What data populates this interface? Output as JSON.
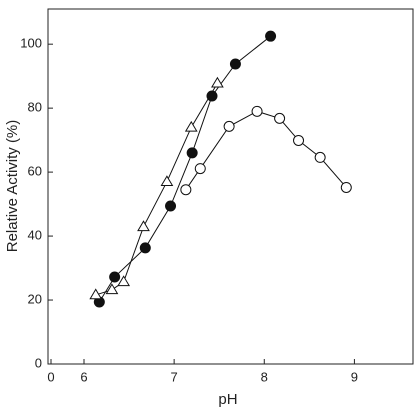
{
  "chart_data": {
    "type": "line",
    "x_label": "pH",
    "y_label": "Relative Activity (%)",
    "x_axis_break": true,
    "xlim": [
      0,
      9.65
    ],
    "xticks": [
      0,
      6,
      7,
      8,
      9
    ],
    "ylim": [
      0,
      111
    ],
    "yticks": [
      0,
      20,
      40,
      60,
      80,
      100
    ],
    "grid": false,
    "series": [
      {
        "color": "#111111",
        "marker": "circle-filled",
        "x": [
          6.17,
          6.34,
          6.68,
          6.96,
          7.2,
          7.42,
          7.68,
          8.07
        ],
        "values": [
          19.4,
          27.2,
          36.3,
          49.4,
          66,
          83.8,
          93.8,
          102.5
        ]
      },
      {
        "color": "#111111",
        "marker": "triangle-open",
        "x": [
          6.13,
          6.31,
          6.44,
          6.66,
          6.92,
          7.19,
          7.48
        ],
        "values": [
          21.6,
          23.2,
          25.7,
          42.9,
          57,
          74,
          87.8
        ]
      },
      {
        "color": "#111111",
        "marker": "circle-open",
        "x": [
          7.13,
          7.29,
          7.61,
          7.92,
          8.17,
          8.38,
          8.62,
          8.91
        ],
        "values": [
          54.5,
          61.1,
          74.3,
          79,
          76.8,
          69.9,
          64.6,
          55.2
        ]
      }
    ]
  }
}
